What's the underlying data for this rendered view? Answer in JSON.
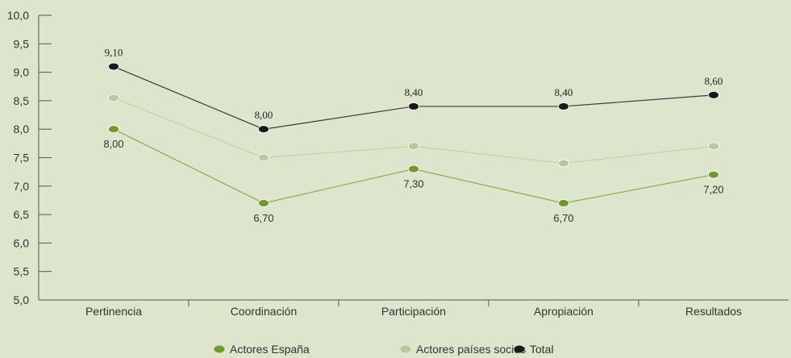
{
  "chart_data": {
    "type": "line",
    "title": "",
    "xlabel": "",
    "ylabel": "",
    "ylim": [
      5.0,
      10.0
    ],
    "y_ticks": [
      "5,0",
      "5,5",
      "6,0",
      "6,5",
      "7,0",
      "7,5",
      "8,0",
      "8,5",
      "9,0",
      "9,5",
      "10,0"
    ],
    "categories": [
      "Pertinencia",
      "Coordinación",
      "Participación",
      "Apropiación",
      "Resultados"
    ],
    "grid": false,
    "legend_position": "bottom",
    "series": [
      {
        "name": "Actores España",
        "values": [
          8.0,
          6.7,
          7.3,
          6.7,
          7.2
        ],
        "labels": [
          "8,00",
          "6,70",
          "7,30",
          "6,70",
          "7,20"
        ],
        "color": "#6f9a2a",
        "line_color": "#8aae4a"
      },
      {
        "name": "Actores países socios",
        "values": [
          8.55,
          7.5,
          7.7,
          7.4,
          7.7
        ],
        "labels": [],
        "color": "#b6c99a",
        "line_color": "#c3d3a6"
      },
      {
        "name": "Total",
        "values": [
          9.1,
          8.0,
          8.4,
          8.4,
          8.6
        ],
        "labels": [
          "9,10",
          "8,00",
          "8,40",
          "8,40",
          "8,60"
        ],
        "color": "#1a1a1a",
        "line_color": "#3a3a3a"
      }
    ]
  }
}
